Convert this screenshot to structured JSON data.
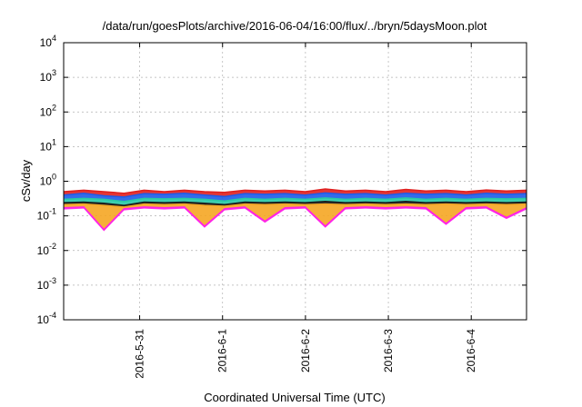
{
  "chart_data": {
    "type": "area",
    "title": "/data/run/goesPlots/archive/2016-06-04/16:00/flux/../bryn/5daysMoon.plot",
    "xlabel": "Coordinated Universal Time (UTC)",
    "ylabel": "cSv/day",
    "yscale": "log",
    "ylim": [
      0.0001,
      10000
    ],
    "xlim": [
      "2016-05-30T02:00",
      "2016-06-04T16:00"
    ],
    "grid": true,
    "x_ticks": [
      {
        "value": "2016-05-31T00:00",
        "label": "2016-5-31"
      },
      {
        "value": "2016-06-01T00:00",
        "label": "2016-6-1"
      },
      {
        "value": "2016-06-02T00:00",
        "label": "2016-6-2"
      },
      {
        "value": "2016-06-03T00:00",
        "label": "2016-6-3"
      },
      {
        "value": "2016-06-04T00:00",
        "label": "2016-6-4"
      }
    ],
    "y_ticks": [
      {
        "value": 0.0001,
        "base": "10",
        "exp": "-4"
      },
      {
        "value": 0.001,
        "base": "10",
        "exp": "-3"
      },
      {
        "value": 0.01,
        "base": "10",
        "exp": "-2"
      },
      {
        "value": 0.1,
        "base": "10",
        "exp": "-1"
      },
      {
        "value": 1,
        "base": "10",
        "exp": "0"
      },
      {
        "value": 10,
        "base": "10",
        "exp": "1"
      },
      {
        "value": 100,
        "base": "10",
        "exp": "2"
      },
      {
        "value": 1000,
        "base": "10",
        "exp": "3"
      },
      {
        "value": 10000,
        "base": "10",
        "exp": "4"
      }
    ],
    "series": [
      {
        "color": "#e0201f",
        "values": [
          0.5,
          0.55,
          0.5,
          0.45,
          0.55,
          0.5,
          0.55,
          0.5,
          0.48,
          0.55,
          0.52,
          0.55,
          0.5,
          0.6,
          0.52,
          0.55,
          0.5,
          0.58,
          0.52,
          0.55,
          0.5,
          0.56,
          0.52,
          0.55
        ]
      },
      {
        "color": "#1e5be8",
        "values": [
          0.4,
          0.45,
          0.38,
          0.35,
          0.44,
          0.42,
          0.45,
          0.4,
          0.36,
          0.44,
          0.42,
          0.44,
          0.4,
          0.46,
          0.42,
          0.44,
          0.4,
          0.45,
          0.42,
          0.44,
          0.4,
          0.45,
          0.42,
          0.44
        ]
      },
      {
        "color": "#27c9a6",
        "values": [
          0.3,
          0.32,
          0.3,
          0.26,
          0.32,
          0.31,
          0.32,
          0.3,
          0.27,
          0.32,
          0.3,
          0.32,
          0.3,
          0.33,
          0.3,
          0.32,
          0.3,
          0.33,
          0.3,
          0.32,
          0.3,
          0.32,
          0.31,
          0.32
        ]
      },
      {
        "color": "#1a1a1a",
        "values": [
          0.24,
          0.25,
          0.23,
          0.2,
          0.25,
          0.24,
          0.25,
          0.23,
          0.21,
          0.25,
          0.24,
          0.25,
          0.24,
          0.26,
          0.24,
          0.25,
          0.24,
          0.26,
          0.24,
          0.25,
          0.24,
          0.25,
          0.24,
          0.25
        ]
      },
      {
        "color": "#f5a623",
        "values": [
          0.21,
          0.22,
          0.2,
          0.18,
          0.22,
          0.21,
          0.22,
          0.2,
          0.19,
          0.22,
          0.21,
          0.22,
          0.21,
          0.22,
          0.21,
          0.22,
          0.21,
          0.22,
          0.21,
          0.22,
          0.21,
          0.22,
          0.21,
          0.22
        ]
      },
      {
        "color": "#ff1fe8",
        "values": [
          0.17,
          0.18,
          0.04,
          0.16,
          0.18,
          0.17,
          0.18,
          0.05,
          0.16,
          0.18,
          0.07,
          0.17,
          0.18,
          0.05,
          0.17,
          0.18,
          0.17,
          0.18,
          0.17,
          0.06,
          0.17,
          0.18,
          0.09,
          0.17
        ]
      }
    ]
  }
}
